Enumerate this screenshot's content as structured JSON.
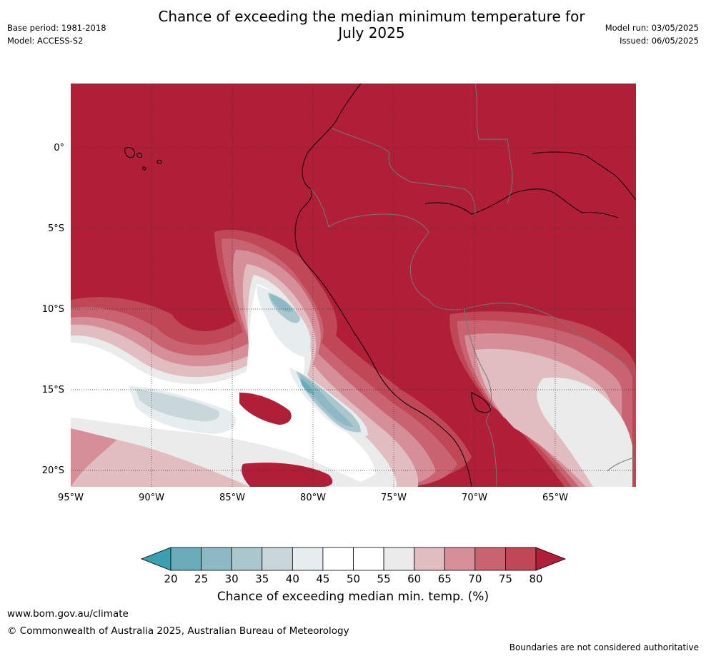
{
  "header": {
    "title_line1": "Chance of exceeding the median minimum temperature for",
    "title_line2": "July 2025",
    "base_period": "Base period: 1981-2018",
    "model": "Model: ACCESS-S2",
    "model_run": "Model run: 03/05/2025",
    "issued": "Issued: 06/05/2025"
  },
  "map": {
    "lat_labels": [
      "0°",
      "5°S",
      "10°S",
      "15°S",
      "20°S"
    ],
    "lon_labels": [
      "95°W",
      "90°W",
      "85°W",
      "80°W",
      "75°W",
      "70°W",
      "65°W"
    ],
    "extent": {
      "lon_min": -95,
      "lon_max": -60,
      "lat_min": -21,
      "lat_max": 4
    },
    "background_color": "#b01e38"
  },
  "colorbar": {
    "ticks": [
      "20",
      "25",
      "30",
      "35",
      "40",
      "45",
      "50",
      "55",
      "60",
      "65",
      "70",
      "75",
      "80"
    ],
    "colors": [
      "#3c9fb0",
      "#69adbb",
      "#8db9c5",
      "#aac7ce",
      "#c8d7da",
      "#e7edef",
      "#ffffff",
      "#ffffff",
      "#ebebeb",
      "#e1bcc1",
      "#d68e98",
      "#c96372",
      "#bf4756",
      "#b01e38"
    ],
    "label": "Chance of exceeding median min. temp. (%)"
  },
  "footer": {
    "url": "www.bom.gov.au/climate",
    "copyright": "© Commonwealth of Australia 2025, Australian Bureau of Meteorology",
    "note": "Boundaries are not considered authoritative"
  }
}
